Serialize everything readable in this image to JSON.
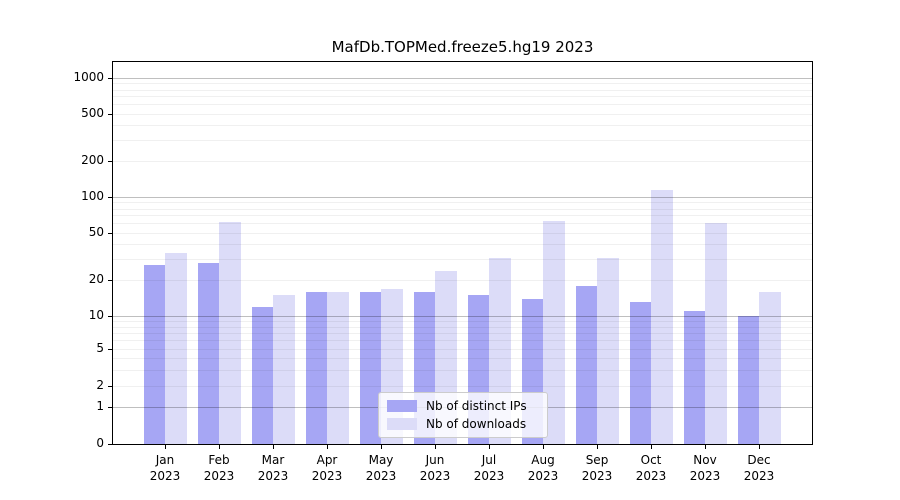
{
  "chart_data": {
    "type": "bar",
    "title": "MafDb.TOPMed.freeze5.hg19 2023",
    "categories": [
      "Jan",
      "Feb",
      "Mar",
      "Apr",
      "May",
      "Jun",
      "Jul",
      "Aug",
      "Sep",
      "Oct",
      "Nov",
      "Dec"
    ],
    "year": "2023",
    "series": [
      {
        "name": "Nb of distinct IPs",
        "color": "#a6a6f4",
        "values": [
          27,
          28,
          12,
          16,
          16,
          16,
          15,
          14,
          18,
          13,
          11,
          10
        ]
      },
      {
        "name": "Nb of downloads",
        "color": "#dcdcf8",
        "values": [
          34,
          62,
          15,
          16,
          17,
          24,
          31,
          63,
          31,
          115,
          61,
          16
        ]
      }
    ],
    "yscale": "symlog",
    "ytick_labels": [
      "0",
      "1",
      "2",
      "5",
      "10",
      "20",
      "50",
      "100",
      "200",
      "500",
      "1000"
    ],
    "ytick_values": [
      0,
      1,
      2,
      5,
      10,
      20,
      50,
      100,
      200,
      500,
      1000
    ],
    "minor_grid_values": [
      2,
      3,
      4,
      5,
      6,
      7,
      8,
      9,
      20,
      30,
      40,
      50,
      60,
      70,
      80,
      90,
      200,
      300,
      400,
      500,
      600,
      700,
      800,
      900
    ],
    "major_grid_values": [
      1,
      10,
      100,
      1000
    ],
    "ylim": [
      0,
      1000
    ],
    "grid": true,
    "legend_position": "lower center",
    "xlabel": "",
    "ylabel": ""
  },
  "colors": {
    "axis": "#000000",
    "text": "#000000",
    "major_grid": "rgba(0,0,0,0.25)",
    "minor_grid": "rgba(0,0,0,0.06)",
    "legend_bg": "rgba(255,255,255,0.8)",
    "legend_border": "#cccccc",
    "background": "#ffffff"
  }
}
